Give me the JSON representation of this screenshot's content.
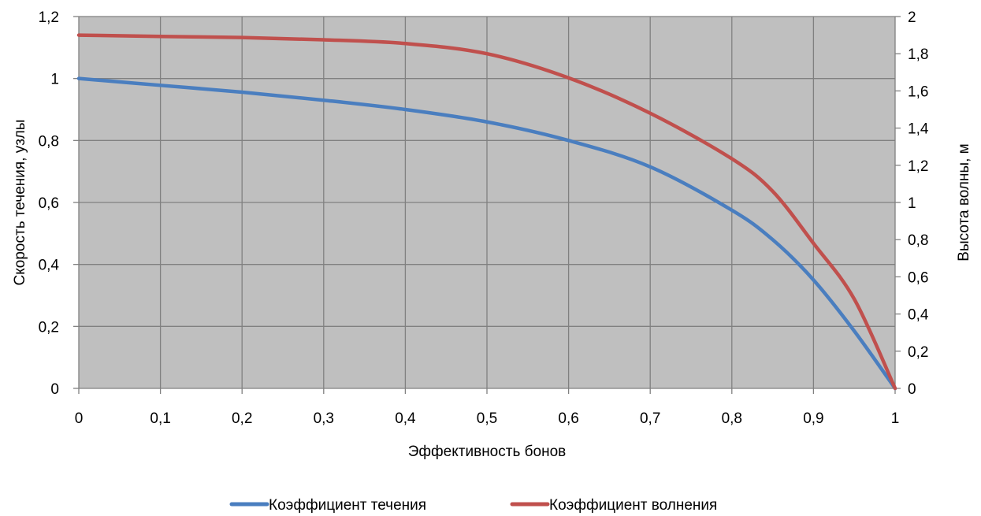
{
  "chart_data": {
    "type": "line",
    "xlabel": "Эффективность бонов",
    "ylabel": "Скорость течения, узлы",
    "y2label": "Высота волны, м",
    "xlim": [
      0,
      1
    ],
    "ylim": [
      0,
      1.2
    ],
    "y2lim": [
      0,
      2
    ],
    "x_ticks": [
      "0",
      "0,1",
      "0,2",
      "0,3",
      "0,4",
      "0,5",
      "0,6",
      "0,7",
      "0,8",
      "0,9",
      "1"
    ],
    "y_ticks": [
      "0",
      "0,2",
      "0,4",
      "0,6",
      "0,8",
      "1",
      "1,2"
    ],
    "y2_ticks": [
      "0",
      "0,2",
      "0,4",
      "0,6",
      "0,8",
      "1",
      "1,2",
      "1,4",
      "1,6",
      "1,8",
      "2"
    ],
    "grid": true,
    "legend_position": "bottom",
    "plot_background": "#bfbfbf",
    "series": [
      {
        "name": "Коэффициент течения",
        "axis": "left",
        "color": "#4a7ebf",
        "x": [
          0,
          0.1,
          0.2,
          0.3,
          0.4,
          0.5,
          0.6,
          0.7,
          0.8,
          0.85,
          0.9,
          0.95,
          1.0
        ],
        "y": [
          1.0,
          0.978,
          0.956,
          0.93,
          0.9,
          0.86,
          0.8,
          0.715,
          0.575,
          0.48,
          0.35,
          0.185,
          0.0
        ]
      },
      {
        "name": "Коэффициент волнения",
        "axis": "right",
        "color": "#c0504d",
        "x": [
          0,
          0.1,
          0.2,
          0.3,
          0.4,
          0.5,
          0.6,
          0.7,
          0.8,
          0.85,
          0.9,
          0.95,
          1.0
        ],
        "y": [
          1.9,
          1.893,
          1.887,
          1.875,
          1.855,
          1.8,
          1.67,
          1.48,
          1.235,
          1.06,
          0.78,
          0.48,
          0.0
        ]
      }
    ]
  }
}
